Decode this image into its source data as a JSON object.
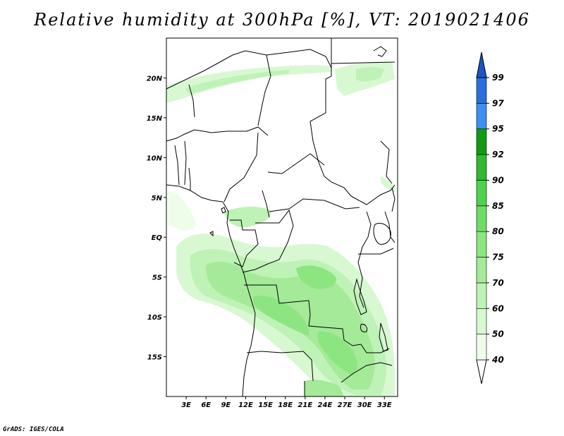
{
  "title": "Relative humidity at 300hPa [%], VT: 2019021406",
  "credit": "GrADS: IGES/COLA",
  "colors": {
    "frame": "#000000",
    "boundary": "#000000",
    "rh40": "#edfdea",
    "rh50": "#d8f8d2",
    "rh60": "#bff2b6",
    "rh70": "#a4ea98",
    "rh75": "#8de582",
    "rh80": "#6fdc67",
    "rh85": "#4fd24c",
    "rh90": "#31b92f",
    "rh92": "#139a13",
    "rh95": "#3f8ff0",
    "rh97": "#2a70dc",
    "rh99": "#1a55c8"
  },
  "map": {
    "lon_range": [
      0,
      35
    ],
    "lat_range": [
      -20,
      25
    ],
    "x_ticks": [
      "3E",
      "6E",
      "9E",
      "12E",
      "15E",
      "18E",
      "21E",
      "24E",
      "27E",
      "30E",
      "33E"
    ],
    "y_ticks": [
      "20N",
      "15N",
      "10N",
      "5N",
      "EQ",
      "5S",
      "10S",
      "15S"
    ]
  },
  "colorbar": {
    "levels": [
      "40",
      "50",
      "60",
      "70",
      "75",
      "80",
      "85",
      "90",
      "92",
      "95",
      "97",
      "99"
    ]
  }
}
